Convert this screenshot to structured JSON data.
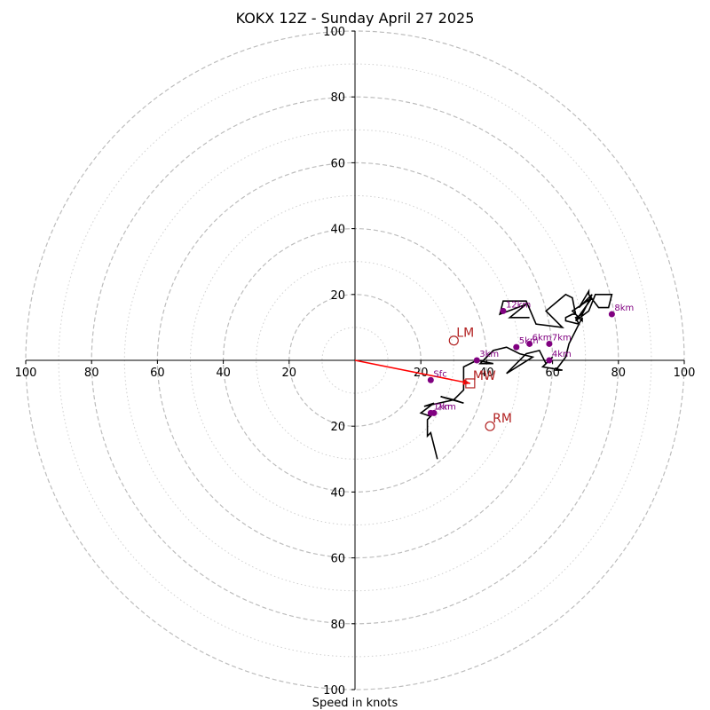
{
  "chart_data": {
    "type": "scatter",
    "title": "KOKX 12Z - Sunday April 27 2025",
    "xlabel": "Speed in knots",
    "ylabel": "",
    "xlim": [
      -100,
      100
    ],
    "ylim": [
      -100,
      100
    ],
    "ring_major": [
      20,
      40,
      60,
      80,
      100
    ],
    "ring_minor": [
      10,
      30,
      50,
      70,
      90
    ],
    "x_ticks": [
      -100,
      -80,
      -60,
      -40,
      -20,
      20,
      40,
      60,
      80,
      100
    ],
    "x_tick_labels": [
      "100",
      "80",
      "60",
      "40",
      "20",
      "20",
      "40",
      "60",
      "80",
      "100"
    ],
    "y_ticks": [
      100,
      80,
      60,
      40,
      20,
      -20,
      -40,
      -60,
      -80,
      -100
    ],
    "y_tick_labels": [
      "100",
      "80",
      "60",
      "40",
      "20",
      "20",
      "40",
      "60",
      "80",
      "100"
    ],
    "grid": true,
    "hodograph": {
      "color": "#000000",
      "u": [
        25,
        23,
        22,
        22,
        23,
        20,
        24,
        21,
        30,
        33,
        26,
        30,
        33,
        33,
        37,
        42,
        38,
        42,
        46,
        50,
        54,
        46,
        52,
        56,
        58,
        60,
        57,
        63,
        61,
        64,
        65,
        69,
        69,
        66,
        72,
        67,
        71,
        73,
        78,
        77,
        74,
        71,
        71,
        68,
        72,
        69,
        67,
        68,
        64,
        64,
        66,
        67,
        66,
        64,
        58,
        63,
        55,
        52,
        45,
        44,
        52,
        47,
        53
      ],
      "v": [
        -30,
        -22,
        -23,
        -18,
        -17,
        -16,
        -13,
        -14,
        -12,
        -13,
        -11,
        -12,
        -9,
        -2,
        0,
        -1,
        -1,
        3,
        4,
        2,
        1,
        -4,
        2,
        3,
        -1,
        1,
        -2,
        -3,
        -3,
        1,
        5,
        13,
        12,
        15,
        19,
        12,
        15,
        20,
        20,
        16,
        16,
        20,
        21,
        16,
        20,
        14,
        13,
        11,
        12,
        13,
        14,
        14,
        19,
        20,
        15,
        10,
        11,
        18,
        18,
        14,
        17,
        13,
        13
      ]
    },
    "height_markers": {
      "color": "#800080",
      "points": [
        {
          "label": "Sfc",
          "u": 23,
          "v": -6
        },
        {
          "label": "1km",
          "u": 23,
          "v": -16
        },
        {
          "label": "2km",
          "u": 24,
          "v": -16
        },
        {
          "label": "3km",
          "u": 37,
          "v": 0
        },
        {
          "label": "4km",
          "u": 59,
          "v": 0
        },
        {
          "label": "5km",
          "u": 49,
          "v": 4
        },
        {
          "label": "6km",
          "u": 53,
          "v": 5
        },
        {
          "label": "7km",
          "u": 59,
          "v": 5
        },
        {
          "label": "8km",
          "u": 78,
          "v": 14
        },
        {
          "label": "12km",
          "u": 45,
          "v": 15
        }
      ]
    },
    "storm_motion": {
      "color": "#b22222",
      "points": [
        {
          "label": "LM",
          "u": 30,
          "v": 6,
          "marker": "circle"
        },
        {
          "label": "MW",
          "u": 35,
          "v": -7,
          "marker": "square"
        },
        {
          "label": "RM",
          "u": 41,
          "v": -20,
          "marker": "circle"
        }
      ]
    },
    "shear_vector": {
      "color": "#ff0000",
      "from": [
        0,
        0
      ],
      "to": [
        35,
        -7
      ]
    }
  }
}
